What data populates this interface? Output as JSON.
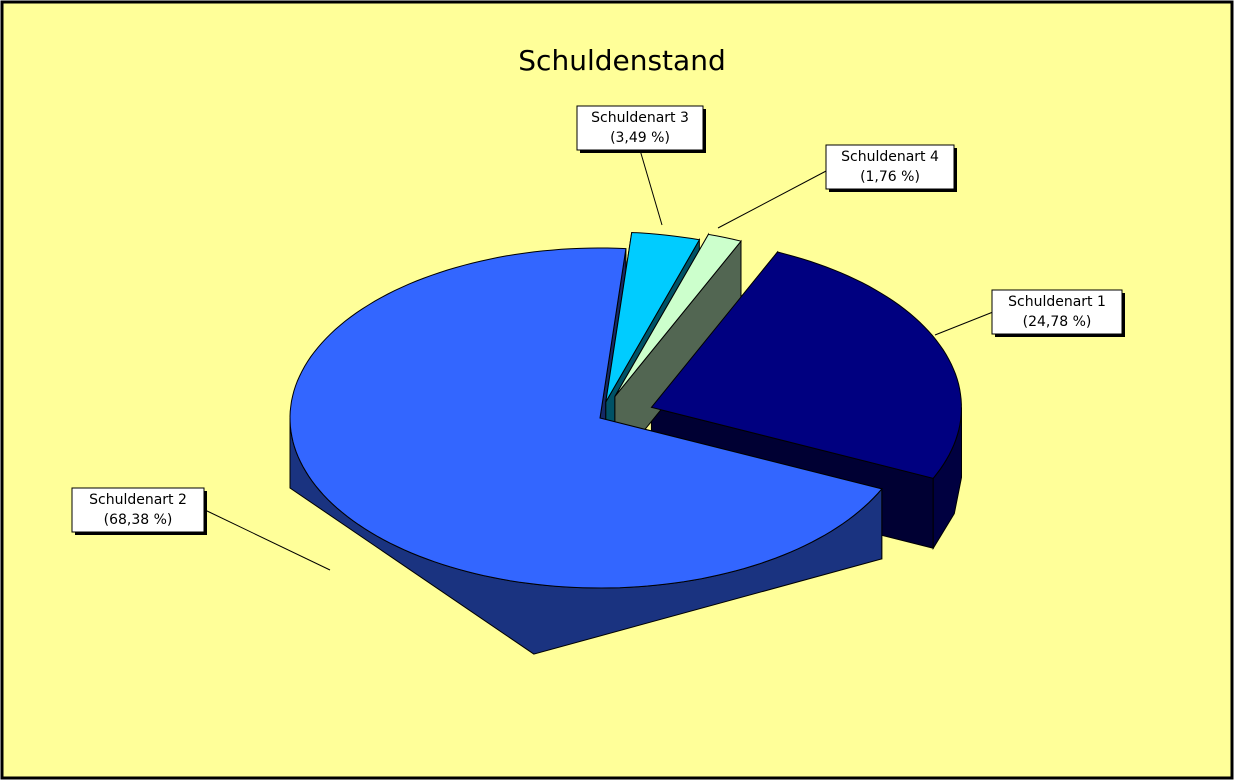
{
  "chart_data": {
    "type": "pie3d",
    "title": "Schuldenstand",
    "categories": [
      "Schuldenart 1",
      "Schuldenart 2",
      "Schuldenart 3",
      "Schuldenart 4"
    ],
    "values": [
      24.78,
      68.38,
      3.49,
      1.76
    ],
    "value_labels": [
      "(24,78 %)",
      "(68,38 %)",
      "(3,49 %)",
      "(1,76 %)"
    ],
    "colors": [
      "#000080",
      "#3366ff",
      "#00ccff",
      "#ccffcc"
    ],
    "background": "#ffff99"
  }
}
